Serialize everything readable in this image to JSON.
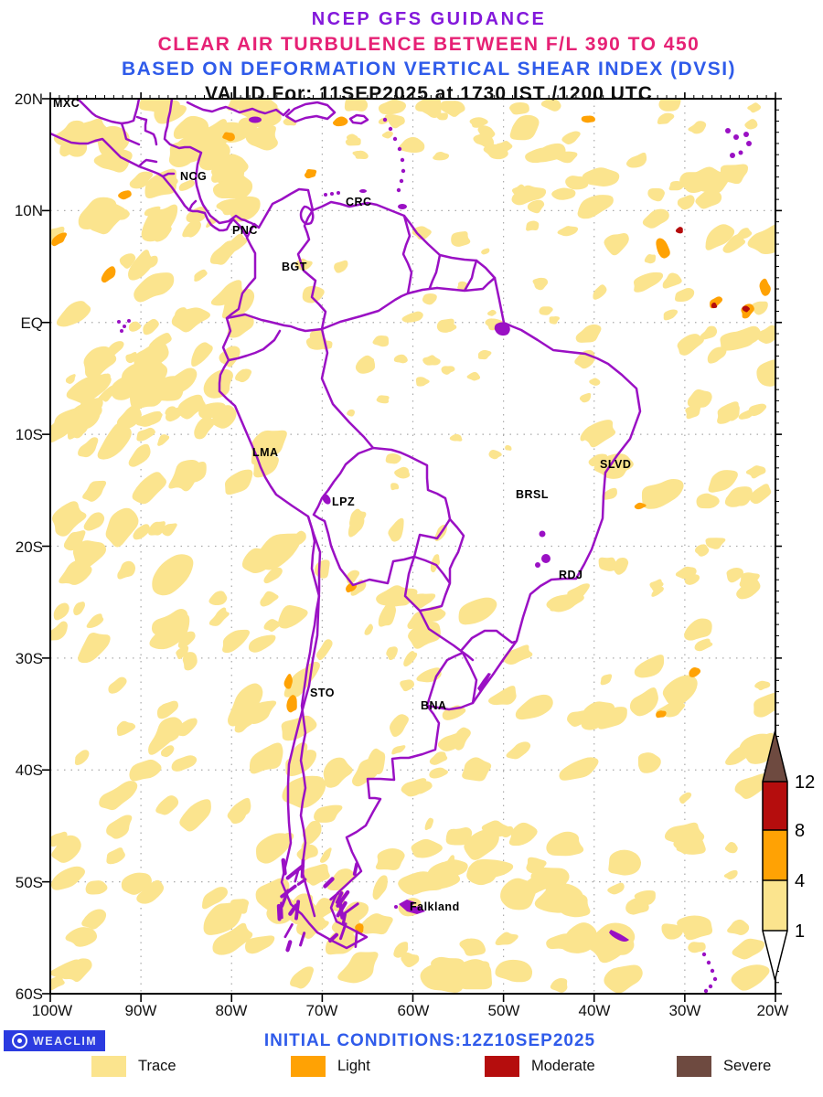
{
  "title": {
    "line1": "NCEP GFS GUIDANCE",
    "line2": "CLEAR AIR TURBULENCE BETWEEN F/L 390 TO 450",
    "line3": "BASED ON DEFORMATION VERTICAL SHEAR INDEX (DVSI)",
    "line4": "VALID For: 11SEP2025 at 1730 IST /1200 UTC"
  },
  "map": {
    "x_ticks": [
      "100W",
      "90W",
      "80W",
      "70W",
      "60W",
      "50W",
      "40W",
      "30W",
      "20W"
    ],
    "y_ticks": [
      "20N",
      "10N",
      "EQ",
      "10S",
      "20S",
      "30S",
      "40S",
      "50S",
      "60S"
    ],
    "cities": [
      "MXC",
      "NCG",
      "CRC",
      "PNC",
      "BGT",
      "LMA",
      "LPZ",
      "BRSL",
      "SLVD",
      "RDJ",
      "STO",
      "BNA",
      "Falkland"
    ]
  },
  "colorbar": {
    "labels": [
      "12",
      "8",
      "4",
      "1"
    ],
    "thresholds": [
      1,
      4,
      8,
      12
    ]
  },
  "footer": {
    "brand": "WEACLIM",
    "initial_conditions": "INITIAL CONDITIONS:12Z10SEP2025",
    "legend": [
      {
        "label": "Trace",
        "color": "#FBE48E"
      },
      {
        "label": "Light",
        "color": "#FFA204"
      },
      {
        "label": "Moderate",
        "color": "#B50D0D"
      },
      {
        "label": "Severe",
        "color": "#6E4A40"
      }
    ]
  },
  "palette": {
    "trace": "#FBE48E",
    "light": "#FFA204",
    "moderate": "#B50D0D",
    "severe": "#6E4A40",
    "border": "#9A10C4",
    "grid": "#AAAAAA",
    "title_purple": "#8318DB",
    "title_pink": "#E62175",
    "title_blue": "#2F5BEA",
    "white": "#FFFFFF"
  }
}
